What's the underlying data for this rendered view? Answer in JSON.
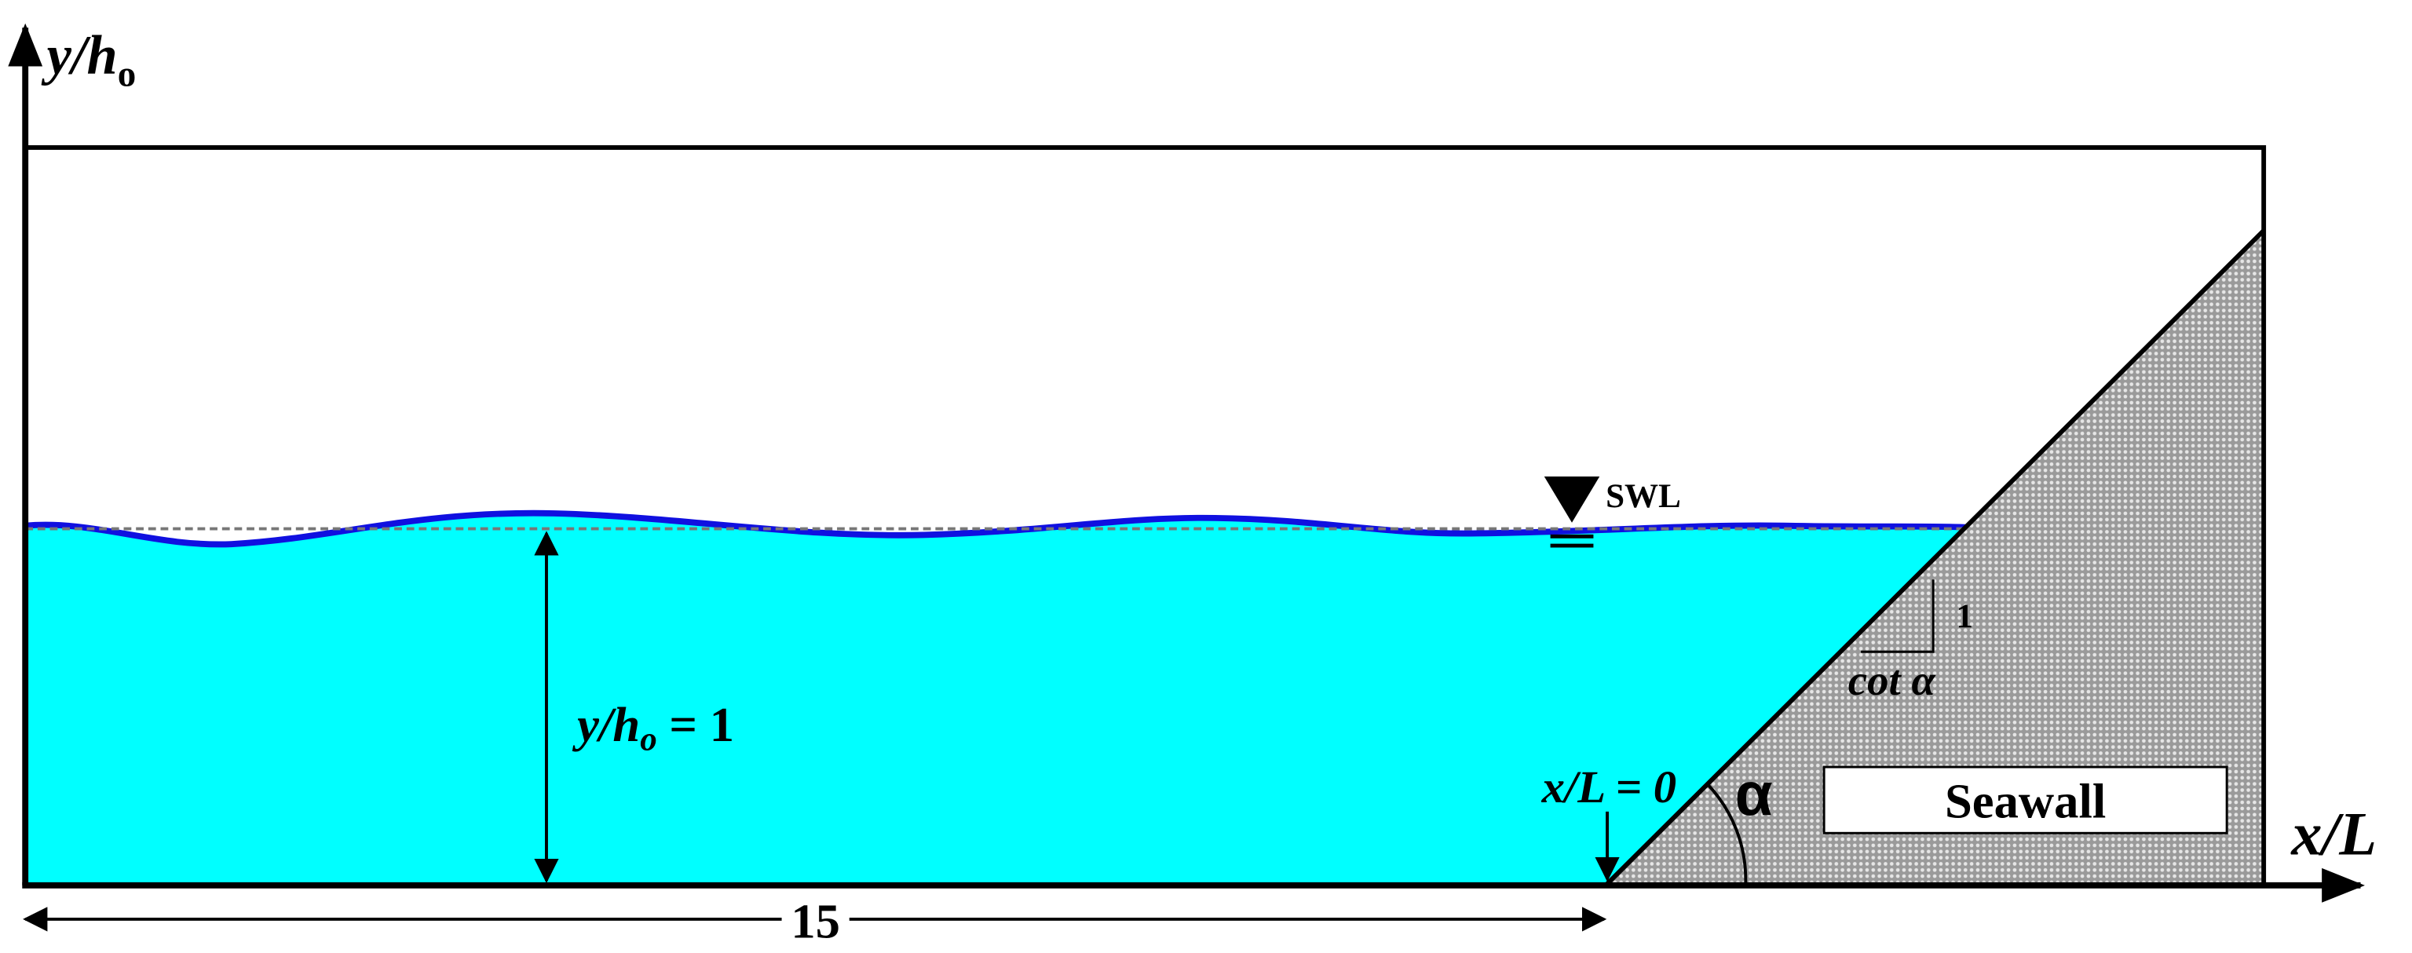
{
  "axes": {
    "y_label": {
      "main": "y/h",
      "sub": "o"
    },
    "x_label": "x/L"
  },
  "water": {
    "swl_label": "SWL",
    "depth_label": {
      "main": "y/h",
      "sub": "o",
      "rest": " = 1"
    },
    "length_label": "15"
  },
  "seawall": {
    "label": "Seawall",
    "toe_label": "x/L = 0",
    "slope_rise": "1",
    "slope_run": "cot α",
    "angle": "α"
  }
}
